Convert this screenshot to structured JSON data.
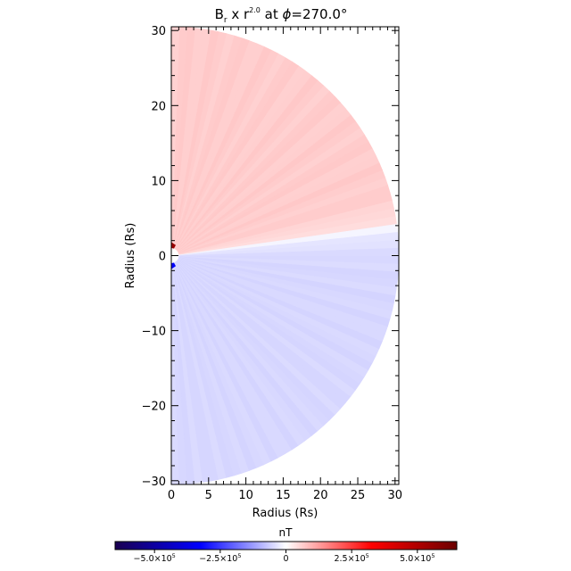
{
  "chart_data": {
    "type": "heatmap",
    "title": {
      "base": "B",
      "base_sub": "r",
      "mid": " x r",
      "power": "2.0",
      "tail": " at ",
      "phi_symbol": "ϕ",
      "phi_value": "=270.0°"
    },
    "xlabel": "Radius (Rs)",
    "ylabel": "Radius (Rs)",
    "xlim": [
      0,
      30.5
    ],
    "ylim": [
      -30.5,
      30.5
    ],
    "xticks": [
      0,
      5,
      10,
      15,
      20,
      25,
      30
    ],
    "yticks": [
      -30,
      -20,
      -10,
      0,
      10,
      20,
      30
    ],
    "field": {
      "r_min": 1,
      "r_max": 30.5,
      "current_sheet_angle_deg": 7.0,
      "north_value": 70000.0,
      "south_value": -55000.0,
      "core_peak": 550000.0
    },
    "colorbar": {
      "label": "nT",
      "min": -650000.0,
      "max": 650000.0,
      "ticks": [
        {
          "value": -500000.0,
          "mantissa": "−5.0×10",
          "exp": "5"
        },
        {
          "value": -250000.0,
          "mantissa": "−2.5×10",
          "exp": "5"
        },
        {
          "value": 0,
          "mantissa": "0",
          "exp": ""
        },
        {
          "value": 250000.0,
          "mantissa": "2.5×10",
          "exp": "5"
        },
        {
          "value": 500000.0,
          "mantissa": "5.0×10",
          "exp": "5"
        }
      ],
      "colormap": [
        "#1a0050",
        "#0000ff",
        "#ffffff",
        "#ff0000",
        "#6b0000"
      ]
    }
  }
}
